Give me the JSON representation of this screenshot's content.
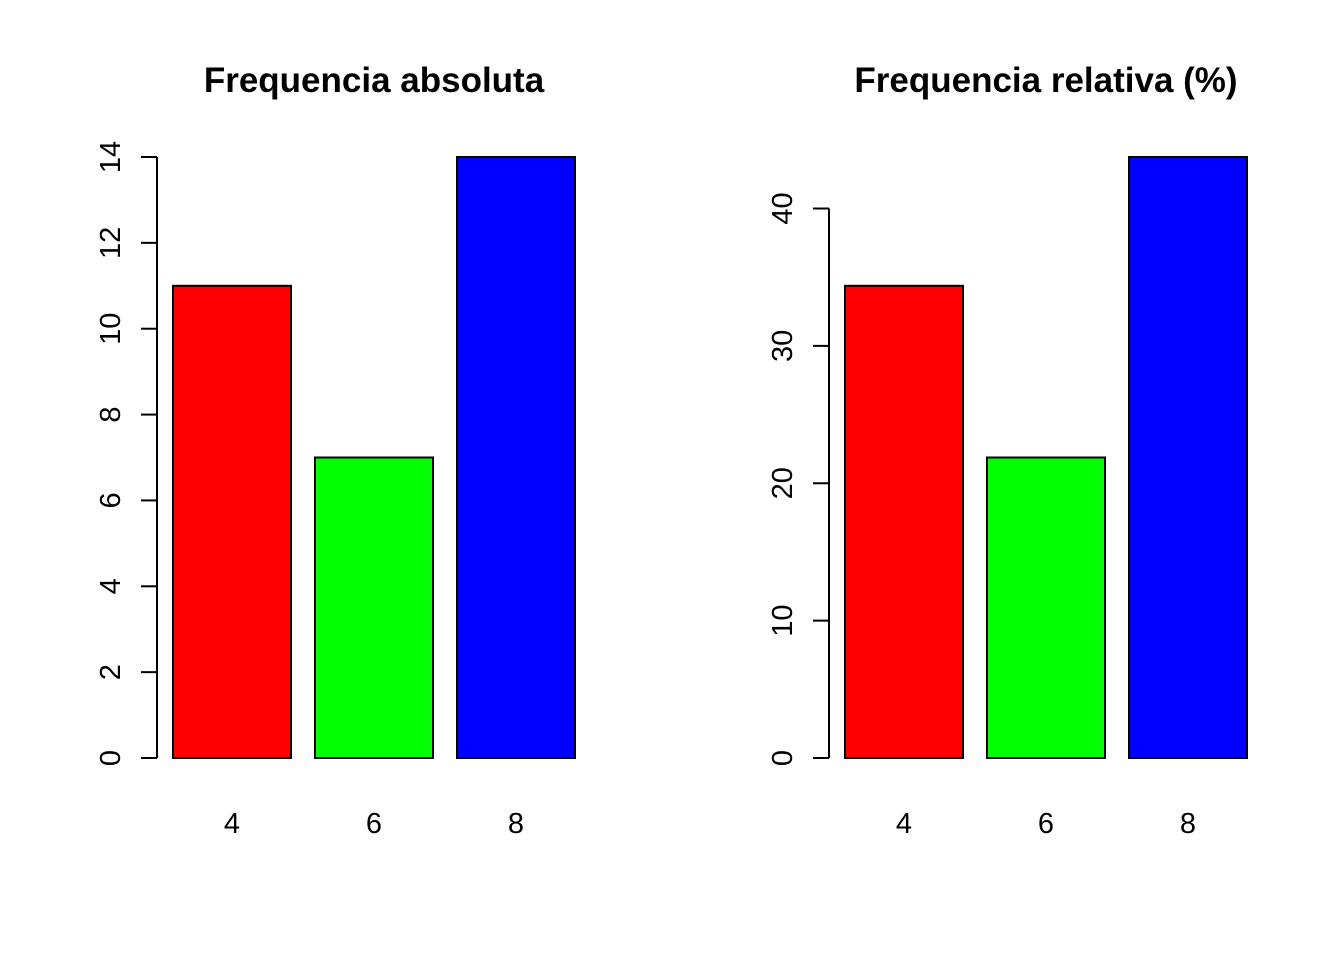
{
  "chart_data": [
    {
      "type": "bar",
      "title": "Frequencia absoluta",
      "categories": [
        "4",
        "6",
        "8"
      ],
      "values": [
        11,
        7,
        14
      ],
      "colors": [
        "#ff0000",
        "#00ff00",
        "#0000ff"
      ],
      "ylim": [
        0,
        14
      ],
      "yticks": [
        0,
        2,
        4,
        6,
        8,
        10,
        12,
        14
      ],
      "xlabel": "",
      "ylabel": "",
      "grid": false,
      "legend": "none"
    },
    {
      "type": "bar",
      "title": "Frequencia relativa (%)",
      "categories": [
        "4",
        "6",
        "8"
      ],
      "values": [
        34.375,
        21.875,
        43.75
      ],
      "colors": [
        "#ff0000",
        "#00ff00",
        "#0000ff"
      ],
      "ylim": [
        0,
        43.75
      ],
      "yticks": [
        0,
        10,
        20,
        30,
        40
      ],
      "xlabel": "",
      "ylabel": "",
      "grid": false,
      "legend": "none"
    }
  ]
}
